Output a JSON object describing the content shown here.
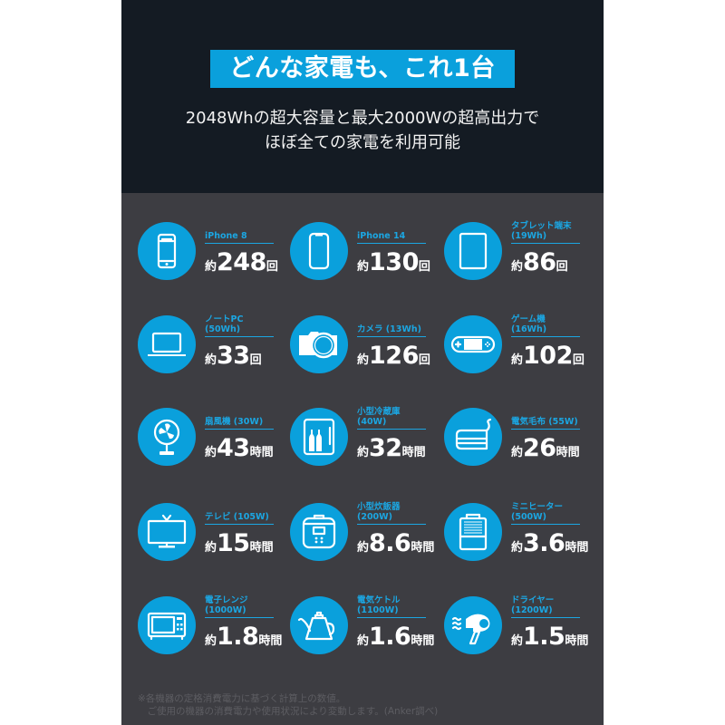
{
  "header": {
    "title": "どんな家電も、これ1台",
    "subtitle_line1": "2048Whの超大容量と最大2000Wの超高出力で",
    "subtitle_line2": "ほぼ全ての家電を利用可能"
  },
  "colors": {
    "accent": "#0aa0dc",
    "header_bg": "#141b23",
    "body_bg": "#3d3d42"
  },
  "items": [
    {
      "label": "iPhone 8",
      "prefix": "約",
      "value": "248",
      "unit": "回",
      "icon": "smartphone-icon"
    },
    {
      "label": "iPhone 14",
      "prefix": "約",
      "value": "130",
      "unit": "回",
      "icon": "smartphone-notch-icon"
    },
    {
      "label": "タブレット端末\n(19Wh)",
      "prefix": "約",
      "value": "86",
      "unit": "回",
      "icon": "tablet-icon"
    },
    {
      "label": "ノートPC (50Wh)",
      "prefix": "約",
      "value": "33",
      "unit": "回",
      "icon": "laptop-icon"
    },
    {
      "label": "カメラ (13Wh)",
      "prefix": "約",
      "value": "126",
      "unit": "回",
      "icon": "camera-icon"
    },
    {
      "label": "ゲーム機 (16Wh)",
      "prefix": "約",
      "value": "102",
      "unit": "回",
      "icon": "game-console-icon"
    },
    {
      "label": "扇風機 (30W)",
      "prefix": "約",
      "value": "43",
      "unit": "時間",
      "icon": "fan-icon"
    },
    {
      "label": "小型冷蔵庫 (40W)",
      "prefix": "約",
      "value": "32",
      "unit": "時間",
      "icon": "fridge-icon"
    },
    {
      "label": "電気毛布 (55W)",
      "prefix": "約",
      "value": "26",
      "unit": "時間",
      "icon": "electric-blanket-icon"
    },
    {
      "label": "テレビ (105W)",
      "prefix": "約",
      "value": "15",
      "unit": "時間",
      "icon": "tv-icon"
    },
    {
      "label": "小型炊飯器\n(200W)",
      "prefix": "約",
      "value": "8.6",
      "unit": "時間",
      "icon": "rice-cooker-icon"
    },
    {
      "label": "ミニヒーター\n(500W)",
      "prefix": "約",
      "value": "3.6",
      "unit": "時間",
      "icon": "heater-icon"
    },
    {
      "label": "電子レンジ\n(1000W)",
      "prefix": "約",
      "value": "1.8",
      "unit": "時間",
      "icon": "microwave-icon"
    },
    {
      "label": "電気ケトル\n(1100W)",
      "prefix": "約",
      "value": "1.6",
      "unit": "時間",
      "icon": "kettle-icon"
    },
    {
      "label": "ドライヤー\n(1200W)",
      "prefix": "約",
      "value": "1.5",
      "unit": "時間",
      "icon": "hair-dryer-icon"
    }
  ],
  "footnote": "※各機器の定格消費電力に基づく計算上の数値。\n　ご使用の機器の消費電力や使用状況により変動します。(Anker調べ)"
}
